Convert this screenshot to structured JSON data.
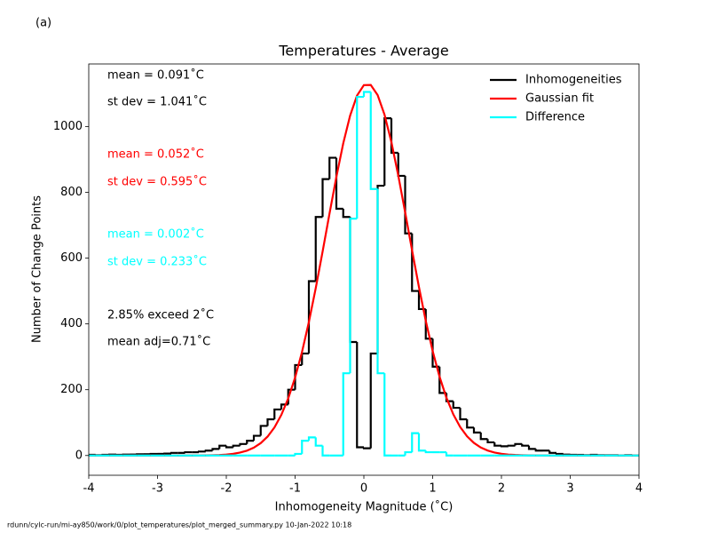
{
  "panel_label": "(a)",
  "footer": "rdunn/cylc-run/mi-ay850/work/0/plot_temperatures/plot_merged_summary.py    10-Jan-2022 10:18",
  "chart_data": {
    "type": "histogram",
    "title": "Temperatures - Average",
    "xlabel": "Inhomogeneity Magnitude (˚C)",
    "ylabel": "Number of Change Points",
    "xlim": [
      -4,
      4
    ],
    "ylim": [
      -60,
      1190
    ],
    "xticks": [
      -4,
      -3,
      -2,
      -1,
      0,
      1,
      2,
      3,
      4
    ],
    "yticks": [
      0,
      200,
      400,
      600,
      800,
      1000
    ],
    "legend": "upper right",
    "bins": [
      -4,
      -3.9,
      -3.8,
      -3.7,
      -3.6,
      -3.5,
      -3.4,
      -3.3,
      -3.2,
      -3.1,
      -3,
      -2.9,
      -2.8,
      -2.7,
      -2.6,
      -2.5,
      -2.4,
      -2.3,
      -2.2,
      -2.1,
      -2,
      -1.9,
      -1.8,
      -1.7,
      -1.6,
      -1.5,
      -1.4,
      -1.3,
      -1.2,
      -1.1,
      -1,
      -0.9,
      -0.8,
      -0.7,
      -0.6,
      -0.5,
      -0.4,
      -0.3,
      -0.2,
      -0.1,
      0,
      0.1,
      0.2,
      0.3,
      0.4,
      0.5,
      0.6,
      0.7,
      0.8,
      0.9,
      1,
      1.1,
      1.2,
      1.3,
      1.4,
      1.5,
      1.6,
      1.7,
      1.8,
      1.9,
      2,
      2.1,
      2.2,
      2.3,
      2.4,
      2.5,
      2.6,
      2.7,
      2.8,
      2.9,
      3,
      3.1,
      3.2,
      3.3,
      3.4,
      3.5,
      3.6,
      3.7,
      3.8,
      3.9,
      4
    ],
    "series": [
      {
        "name": "Inhomogeneities",
        "color": "#000000",
        "values": [
          2,
          1,
          2,
          3,
          2,
          3,
          3,
          4,
          4,
          5,
          5,
          6,
          8,
          8,
          10,
          10,
          12,
          15,
          20,
          30,
          25,
          30,
          35,
          45,
          60,
          90,
          110,
          140,
          155,
          200,
          275,
          310,
          530,
          725,
          840,
          905,
          750,
          725,
          345,
          25,
          22,
          310,
          820,
          1025,
          920,
          850,
          675,
          500,
          445,
          355,
          270,
          190,
          165,
          145,
          110,
          85,
          70,
          50,
          40,
          30,
          28,
          30,
          35,
          30,
          20,
          15,
          15,
          8,
          5,
          3,
          2,
          2,
          1,
          2,
          1,
          1,
          1,
          0,
          1,
          0
        ]
      },
      {
        "name": "Gaussian fit",
        "color": "#ff0000",
        "x": [
          -4,
          -3,
          -2.5,
          -2.4,
          -2.3,
          -2.2,
          -2.1,
          -2,
          -1.9,
          -1.8,
          -1.7,
          -1.6,
          -1.5,
          -1.4,
          -1.3,
          -1.2,
          -1.1,
          -1,
          -0.9,
          -0.8,
          -0.7,
          -0.6,
          -0.5,
          -0.4,
          -0.3,
          -0.2,
          -0.1,
          0,
          0.1,
          0.2,
          0.3,
          0.4,
          0.5,
          0.6,
          0.7,
          0.8,
          0.9,
          1,
          1.1,
          1.2,
          1.3,
          1.4,
          1.5,
          1.6,
          1.7,
          1.8,
          1.9,
          2,
          2.1,
          2.2,
          2.3,
          2.4,
          2.5,
          3,
          4
        ],
        "values": [
          0,
          0,
          0.1,
          0.2,
          0.5,
          0.9,
          1.6,
          2.9,
          5.2,
          8.9,
          14.8,
          23.9,
          37.6,
          57.5,
          85.5,
          123.5,
          173.5,
          236.7,
          314.2,
          405.4,
          508.4,
          619.9,
          734.8,
          846.7,
          948.6,
          1033.1,
          1093.7,
          1125.7,
          1126.3,
          1095.6,
          1036,
          952.4,
          851.1,
          739.4,
          624.4,
          512.7,
          409.2,
          317.6,
          239.6,
          175.7,
          125.2,
          86.8,
          58.5,
          38.3,
          24.4,
          15.1,
          9.1,
          5.3,
          3,
          1.7,
          0.9,
          0.5,
          0.2,
          0,
          0
        ]
      },
      {
        "name": "Difference",
        "color": "#00ffff",
        "values": [
          0,
          0,
          0,
          0,
          0,
          0,
          0,
          0,
          0,
          0,
          0,
          0,
          0,
          0,
          0,
          0,
          0,
          0,
          0,
          0,
          0,
          0,
          0,
          0,
          0,
          0,
          0,
          0,
          0,
          0,
          5,
          45,
          55,
          30,
          0,
          0,
          0,
          250,
          720,
          1090,
          1105,
          810,
          250,
          0,
          0,
          0,
          10,
          68,
          15,
          10,
          10,
          10,
          0,
          0,
          0,
          0,
          0,
          0,
          0,
          0,
          0,
          0,
          0,
          0,
          0,
          0,
          0,
          0,
          0,
          0,
          0,
          0,
          0,
          0,
          0,
          0,
          0,
          0,
          0,
          0
        ]
      }
    ],
    "annotations": [
      {
        "text": "mean =  0.091˚C",
        "color": "#000000"
      },
      {
        "text": "st dev =  1.041˚C",
        "color": "#000000"
      },
      {
        "text": "mean =  0.052˚C",
        "color": "#ff0000"
      },
      {
        "text": "st dev =  0.595˚C",
        "color": "#ff0000"
      },
      {
        "text": "mean =  0.002˚C",
        "color": "#00ffff"
      },
      {
        "text": "st dev =  0.233˚C",
        "color": "#00ffff"
      },
      {
        "text": "2.85% exceed 2˚C",
        "color": "#000000"
      },
      {
        "text": "mean adj=0.71˚C",
        "color": "#000000"
      }
    ]
  }
}
